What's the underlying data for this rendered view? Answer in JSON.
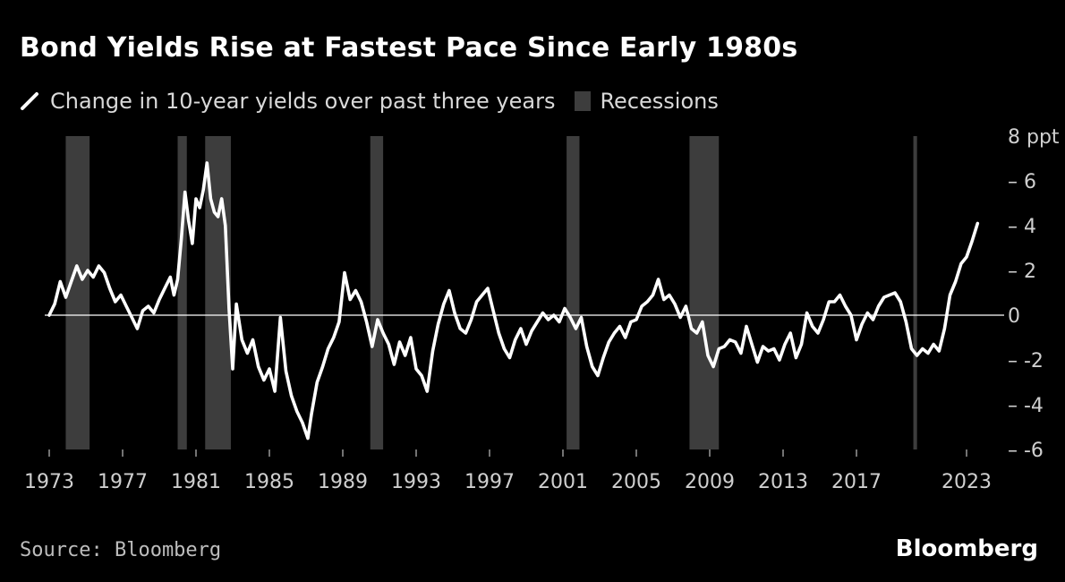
{
  "title": "Bond Yields Rise at Fastest Pace Since Early 1980s",
  "source": "Source: Bloomberg",
  "brand": "Bloomberg",
  "colors": {
    "background": "#000000",
    "line": "#ffffff",
    "recession": "#3d3d3d",
    "zero_line": "#ffffff",
    "text": "#cfcfcf"
  },
  "chart_data": {
    "type": "line",
    "title": "Bond Yields Rise at Fastest Pace Since Early 1980s",
    "xlabel": "",
    "ylabel": "",
    "y_unit": "ppt",
    "ylim": [
      -6,
      8
    ],
    "y_ticks": [
      -6,
      -4,
      -2,
      0,
      2,
      4,
      6,
      8
    ],
    "y_tick_labels": [
      "– -6",
      "– -4",
      "– -2",
      "0",
      "– 2",
      "– 4",
      "– 6",
      "8 ppt"
    ],
    "xlim": [
      1973,
      2024.5
    ],
    "x_ticks": [
      1973,
      1977,
      1981,
      1985,
      1989,
      1993,
      1997,
      2001,
      2005,
      2009,
      2013,
      2017,
      2023
    ],
    "x_tick_labels": [
      "1973",
      "1977",
      "1981",
      "1985",
      "1989",
      "1993",
      "1997",
      "2001",
      "2005",
      "2009",
      "2013",
      "2017",
      "2023"
    ],
    "axis_side": "right",
    "reference_line": 0,
    "legend": {
      "placement": "top-left",
      "entries": [
        "Change in 10-year yields over past three years",
        "Recessions"
      ]
    },
    "series": [
      {
        "name": "Change in 10-year yields over past three years",
        "x": [
          1973.0,
          1973.3,
          1973.6,
          1973.9,
          1974.2,
          1974.5,
          1974.8,
          1975.1,
          1975.4,
          1975.7,
          1976.0,
          1976.3,
          1976.6,
          1976.9,
          1977.2,
          1977.5,
          1977.8,
          1978.1,
          1978.4,
          1978.7,
          1979.0,
          1979.3,
          1979.6,
          1979.8,
          1980.0,
          1980.2,
          1980.4,
          1980.6,
          1980.8,
          1981.0,
          1981.2,
          1981.4,
          1981.6,
          1981.8,
          1982.0,
          1982.2,
          1982.4,
          1982.6,
          1982.8,
          1983.0,
          1983.2,
          1983.5,
          1983.8,
          1984.1,
          1984.4,
          1984.7,
          1985.0,
          1985.3,
          1985.6,
          1985.9,
          1986.2,
          1986.5,
          1986.8,
          1987.1,
          1987.3,
          1987.6,
          1987.9,
          1988.2,
          1988.5,
          1988.8,
          1989.1,
          1989.4,
          1989.7,
          1990.0,
          1990.3,
          1990.6,
          1990.9,
          1991.2,
          1991.5,
          1991.8,
          1992.1,
          1992.4,
          1992.7,
          1993.0,
          1993.3,
          1993.6,
          1993.9,
          1994.2,
          1994.5,
          1994.8,
          1995.1,
          1995.4,
          1995.7,
          1996.0,
          1996.3,
          1996.6,
          1996.9,
          1997.2,
          1997.5,
          1997.8,
          1998.1,
          1998.4,
          1998.7,
          1999.0,
          1999.3,
          1999.6,
          1999.9,
          2000.2,
          2000.5,
          2000.8,
          2001.1,
          2001.4,
          2001.7,
          2002.0,
          2002.3,
          2002.6,
          2002.9,
          2003.2,
          2003.5,
          2003.8,
          2004.1,
          2004.4,
          2004.7,
          2005.0,
          2005.3,
          2005.6,
          2005.9,
          2006.2,
          2006.5,
          2006.8,
          2007.1,
          2007.4,
          2007.7,
          2008.0,
          2008.3,
          2008.6,
          2008.9,
          2009.2,
          2009.5,
          2009.8,
          2010.1,
          2010.4,
          2010.7,
          2011.0,
          2011.3,
          2011.6,
          2011.9,
          2012.2,
          2012.5,
          2012.8,
          2013.1,
          2013.4,
          2013.7,
          2014.0,
          2014.3,
          2014.6,
          2014.9,
          2015.2,
          2015.5,
          2015.8,
          2016.1,
          2016.4,
          2016.7,
          2017.0,
          2017.3,
          2017.6,
          2017.9,
          2018.2,
          2018.5,
          2018.8,
          2019.1,
          2019.4,
          2019.7,
          2020.0,
          2020.3,
          2020.6,
          2020.9,
          2021.2,
          2021.5,
          2021.8,
          2022.1,
          2022.4,
          2022.7,
          2023.0,
          2023.3,
          2023.6
        ],
        "y": [
          0.0,
          0.5,
          1.5,
          0.8,
          1.5,
          2.2,
          1.6,
          2.0,
          1.7,
          2.2,
          1.9,
          1.2,
          0.6,
          0.9,
          0.4,
          -0.1,
          -0.6,
          0.2,
          0.4,
          0.1,
          0.7,
          1.2,
          1.7,
          0.9,
          1.6,
          3.4,
          5.5,
          4.2,
          3.2,
          5.2,
          4.8,
          5.6,
          6.8,
          5.2,
          4.6,
          4.4,
          5.2,
          4.0,
          0.3,
          -2.4,
          0.5,
          -1.1,
          -1.7,
          -1.1,
          -2.3,
          -2.9,
          -2.4,
          -3.4,
          -0.1,
          -2.5,
          -3.6,
          -4.3,
          -4.8,
          -5.5,
          -4.4,
          -3.0,
          -2.3,
          -1.5,
          -1.0,
          -0.3,
          1.9,
          0.7,
          1.1,
          0.6,
          -0.3,
          -1.4,
          -0.2,
          -0.8,
          -1.3,
          -2.2,
          -1.2,
          -1.8,
          -1.0,
          -2.4,
          -2.7,
          -3.4,
          -1.6,
          -0.4,
          0.5,
          1.1,
          0.1,
          -0.6,
          -0.8,
          -0.2,
          0.6,
          0.9,
          1.2,
          0.2,
          -0.8,
          -1.5,
          -1.9,
          -1.1,
          -0.6,
          -1.3,
          -0.7,
          -0.3,
          0.1,
          -0.2,
          0.0,
          -0.3,
          0.3,
          -0.1,
          -0.6,
          -0.1,
          -1.4,
          -2.3,
          -2.7,
          -1.9,
          -1.2,
          -0.8,
          -0.5,
          -1.0,
          -0.3,
          -0.2,
          0.4,
          0.6,
          0.9,
          1.6,
          0.7,
          0.9,
          0.5,
          -0.1,
          0.4,
          -0.6,
          -0.8,
          -0.3,
          -1.8,
          -2.3,
          -1.5,
          -1.4,
          -1.1,
          -1.2,
          -1.7,
          -0.5,
          -1.3,
          -2.1,
          -1.4,
          -1.6,
          -1.5,
          -2.0,
          -1.3,
          -0.8,
          -1.9,
          -1.3,
          0.1,
          -0.5,
          -0.8,
          -0.2,
          0.6,
          0.6,
          0.9,
          0.4,
          0.0,
          -1.1,
          -0.4,
          0.1,
          -0.2,
          0.4,
          0.8,
          0.9,
          1.0,
          0.6,
          -0.3,
          -1.5,
          -1.8,
          -1.5,
          -1.7,
          -1.3,
          -1.6,
          -0.6,
          0.9,
          1.5,
          2.3,
          2.6,
          3.3,
          4.1
        ]
      }
    ],
    "recessions": [
      [
        1973.9,
        1975.2
      ],
      [
        1980.0,
        1980.5
      ],
      [
        1981.5,
        1982.9
      ],
      [
        1990.5,
        1991.2
      ],
      [
        2001.2,
        2001.9
      ],
      [
        2007.9,
        2009.5
      ],
      [
        2020.1,
        2020.3
      ]
    ]
  }
}
